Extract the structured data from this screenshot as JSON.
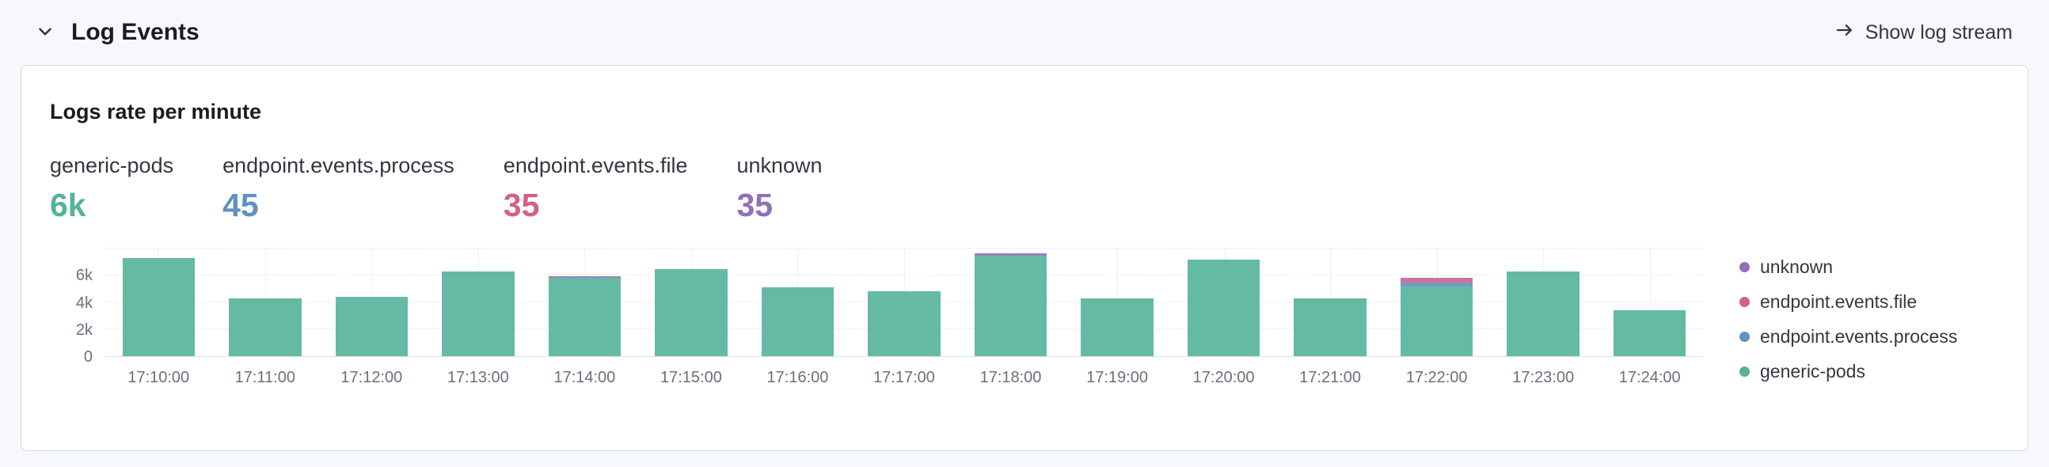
{
  "header": {
    "title": "Log Events",
    "action_label": "Show log stream"
  },
  "panel": {
    "title": "Logs rate per minute",
    "stats": [
      {
        "label": "generic-pods",
        "value": "6k",
        "color": "#54B399"
      },
      {
        "label": "endpoint.events.process",
        "value": "45",
        "color": "#6092C0"
      },
      {
        "label": "endpoint.events.file",
        "value": "35",
        "color": "#D36086"
      },
      {
        "label": "unknown",
        "value": "35",
        "color": "#9170B8"
      }
    ]
  },
  "chart_data": {
    "type": "bar",
    "stacked": true,
    "title": "Logs rate per minute",
    "categories": [
      "17:10:00",
      "17:11:00",
      "17:12:00",
      "17:13:00",
      "17:14:00",
      "17:15:00",
      "17:16:00",
      "17:17:00",
      "17:18:00",
      "17:19:00",
      "17:20:00",
      "17:21:00",
      "17:22:00",
      "17:23:00",
      "17:24:00"
    ],
    "series": [
      {
        "name": "generic-pods",
        "color": "#54B399",
        "values": [
          7300,
          4300,
          4400,
          6300,
          5800,
          6500,
          5100,
          4800,
          7500,
          4300,
          7200,
          4300,
          5200,
          6300,
          3400
        ]
      },
      {
        "name": "endpoint.events.process",
        "color": "#6092C0",
        "values": [
          0,
          0,
          0,
          0,
          0,
          0,
          0,
          0,
          0,
          0,
          0,
          0,
          250,
          0,
          0
        ]
      },
      {
        "name": "endpoint.events.file",
        "color": "#D36086",
        "values": [
          0,
          0,
          0,
          0,
          0,
          0,
          0,
          0,
          0,
          0,
          0,
          0,
          300,
          0,
          0
        ]
      },
      {
        "name": "unknown",
        "color": "#9170B8",
        "values": [
          0,
          0,
          0,
          0,
          120,
          0,
          0,
          0,
          120,
          0,
          0,
          0,
          60,
          0,
          0
        ]
      }
    ],
    "ylim": [
      0,
      8000
    ],
    "yticks": [
      {
        "value": 0,
        "label": "0"
      },
      {
        "value": 2000,
        "label": "2k"
      },
      {
        "value": 4000,
        "label": "4k"
      },
      {
        "value": 6000,
        "label": "6k"
      }
    ],
    "gridlines": [
      2000,
      4000,
      6000,
      8000
    ],
    "grid": true,
    "legend_position": "right",
    "legend": [
      {
        "label": "unknown",
        "color": "#9170B8"
      },
      {
        "label": "endpoint.events.file",
        "color": "#D36086"
      },
      {
        "label": "endpoint.events.process",
        "color": "#6092C0"
      },
      {
        "label": "generic-pods",
        "color": "#54B399"
      }
    ]
  }
}
